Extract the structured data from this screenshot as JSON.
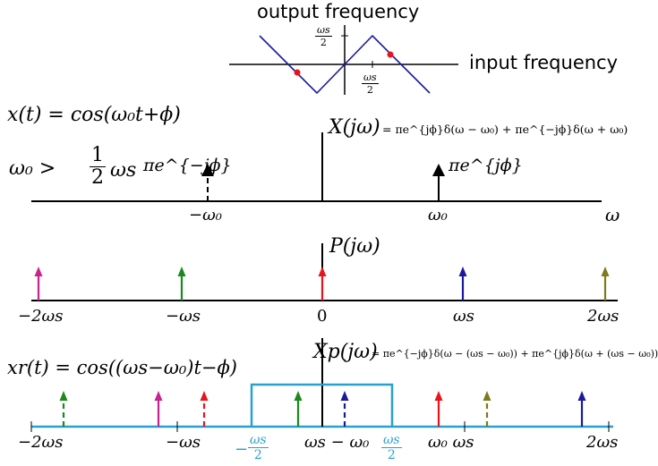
{
  "top_plot": {
    "output_label": "output frequency",
    "input_label": "input frequency",
    "half_ws_num": "ωs",
    "half_ws_den": "2",
    "line_color": "#1a1a9e",
    "dot_color": "#e8141c"
  },
  "panel1": {
    "x_eq": "x(t) = cos(ω₀t+ϕ)",
    "condition_lhs": "ω₀ >",
    "condition_num": "1",
    "condition_den": "2",
    "condition_rhs": "ωs",
    "X_label": "X(jω)",
    "X_eq": "= πe^{jϕ}δ(ω − ω₀) + πe^{−jϕ}δ(ω + ω₀)",
    "impulse_neg_label": "πe^{−jϕ}",
    "impulse_pos_label": "πe^{jϕ}",
    "tick_neg": "−ω₀",
    "tick_pos": "ω₀",
    "axis_label": "ω"
  },
  "panel2": {
    "P_label": "P(jω)",
    "ticks": [
      "−2ωs",
      "−ωs",
      "0",
      "ωs",
      "2ωs"
    ],
    "arrow_colors": [
      "#c8238e",
      "#1b8a1b",
      "#e8141c",
      "#1a1a9e",
      "#7d7a1a"
    ]
  },
  "panel3": {
    "xr_eq": "xr(t) = cos((ωs−ω₀)t−ϕ)",
    "Xp_label": "Xp(jω)",
    "Xp_eq": "= πe^{−jϕ}δ(ω − (ωs − ω₀)) + πe^{jϕ}δ(ω + (ωs − ω₀))",
    "ticks_black": [
      "−2ωs",
      "−ωs",
      "ωs − ω₀",
      "ω₀ ωs",
      "2ωs"
    ],
    "filter_left_num": "ωs",
    "filter_left_den": "2",
    "filter_left_sign": "−",
    "filter_right_num": "ωs",
    "filter_right_den": "2",
    "filter_color": "#2a9fd0"
  }
}
